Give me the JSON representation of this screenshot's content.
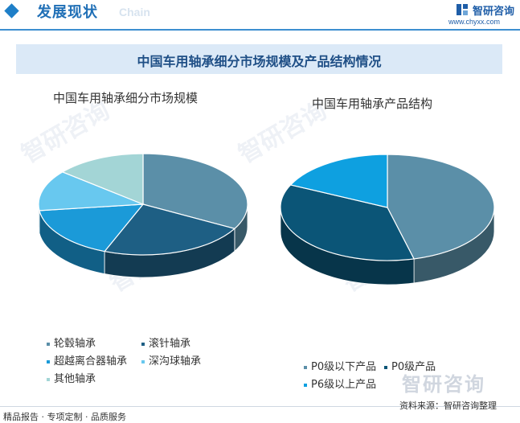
{
  "header": {
    "title": "发展现状",
    "subtitle": "Chain",
    "brand": "智研咨询",
    "url": "www.chyxx.com"
  },
  "main_title": "中国车用轴承细分市场规模及产品结构情况",
  "watermark": {
    "text": "智研咨询",
    "bottom": "智研咨询"
  },
  "colors": {
    "teal_blue": "#5b8fa8",
    "dark_blue": "#1e5f84",
    "blue": "#1b9ad8",
    "light_blue": "#68c8ef",
    "pale_teal": "#a3d5d6",
    "navy": "#0b5577",
    "bright_blue": "#0ea0e0"
  },
  "chart_data": [
    {
      "type": "pie",
      "title": "中国车用轴承细分市场规模",
      "legend_position": "bottom",
      "categories": [
        "轮毂轴承",
        "滚针轴承",
        "超越离合器轴承",
        "深沟球轴承",
        "其他轴承"
      ],
      "values": [
        33,
        23,
        17,
        13,
        14
      ],
      "colors": [
        "#5b8fa8",
        "#1e5f84",
        "#1b9ad8",
        "#68c8ef",
        "#a3d5d6"
      ]
    },
    {
      "type": "pie",
      "title": "中国车用轴承产品结构",
      "legend_position": "bottom",
      "categories": [
        "P0级以下产品",
        "P0级产品",
        "P6级以上产品"
      ],
      "values": [
        46,
        36,
        18
      ],
      "colors": [
        "#5b8fa8",
        "#0b5577",
        "#0ea0e0"
      ]
    }
  ],
  "footer": {
    "left": "精品报告 · 专项定制 · 品质服务",
    "source": "资料来源：智研咨询整理"
  }
}
